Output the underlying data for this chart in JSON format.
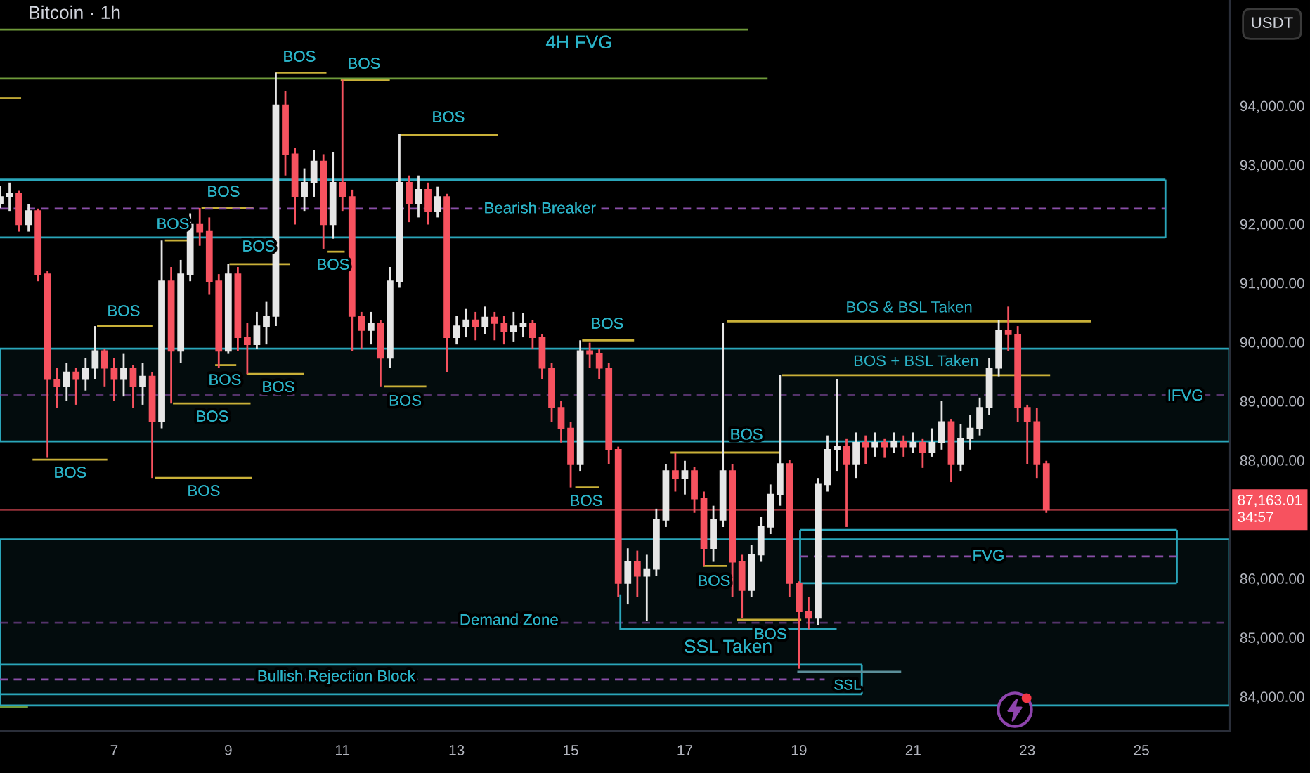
{
  "chart_data": {
    "type": "candlestick",
    "title": "Bitcoin · 1h",
    "ylabel": "USDT",
    "x": [
      5.0,
      5.167,
      5.333,
      5.5,
      5.667,
      5.833,
      6.0,
      6.167,
      6.333,
      6.5,
      6.667,
      6.833,
      7.0,
      7.167,
      7.333,
      7.5,
      7.667,
      7.833,
      8.0,
      8.167,
      8.333,
      8.5,
      8.667,
      8.833,
      9.0,
      9.167,
      9.333,
      9.5,
      9.667,
      9.833,
      10.0,
      10.167,
      10.333,
      10.5,
      10.667,
      10.833,
      11.0,
      11.167,
      11.333,
      11.5,
      11.667,
      11.833,
      12.0,
      12.167,
      12.333,
      12.5,
      12.667,
      12.833,
      13.0,
      13.167,
      13.333,
      13.5,
      13.667,
      13.833,
      14.0,
      14.167,
      14.333,
      14.5,
      14.667,
      14.833,
      15.0,
      15.167,
      15.333,
      15.5,
      15.667,
      15.833,
      16.0,
      16.167,
      16.333,
      16.5,
      16.667,
      16.833,
      17.0,
      17.167,
      17.333,
      17.5,
      17.667,
      17.833,
      18.0,
      18.167,
      18.333,
      18.5,
      18.667,
      18.833,
      19.0,
      19.167,
      19.333,
      19.5,
      19.667,
      19.833,
      20.0,
      20.167,
      20.333,
      20.5,
      20.667,
      20.833,
      21.0,
      21.167,
      21.333,
      21.5,
      21.667,
      21.833,
      22.0,
      22.167,
      22.333,
      22.5,
      22.667,
      22.833,
      23.0,
      23.167,
      23.333
    ],
    "ohlc": [
      [
        92340,
        92650,
        92270,
        92460
      ],
      [
        92460,
        92700,
        92220,
        92510
      ],
      [
        92510,
        92560,
        91870,
        91990
      ],
      [
        91990,
        92340,
        91870,
        92220
      ],
      [
        92220,
        92260,
        91030,
        91150
      ],
      [
        91150,
        91200,
        88040,
        89370
      ],
      [
        89370,
        89560,
        88890,
        89250
      ],
      [
        89250,
        89650,
        89010,
        89490
      ],
      [
        89490,
        89560,
        88940,
        89370
      ],
      [
        89370,
        89730,
        89180,
        89560
      ],
      [
        89560,
        90270,
        89370,
        89850
      ],
      [
        89850,
        89890,
        89250,
        89560
      ],
      [
        89560,
        89730,
        89010,
        89370
      ],
      [
        89370,
        89800,
        89080,
        89560
      ],
      [
        89560,
        89610,
        88890,
        89250
      ],
      [
        89250,
        89650,
        88940,
        89420
      ],
      [
        89420,
        89490,
        87700,
        88650
      ],
      [
        88650,
        91720,
        88540,
        91030
      ],
      [
        91030,
        91270,
        88960,
        89850
      ],
      [
        89850,
        91390,
        89650,
        91150
      ],
      [
        91150,
        92180,
        91030,
        91990
      ],
      [
        91990,
        92270,
        91630,
        91870
      ],
      [
        91870,
        92110,
        90800,
        91030
      ],
      [
        91030,
        91150,
        89560,
        89850
      ],
      [
        89850,
        91320,
        89800,
        91150
      ],
      [
        91150,
        91270,
        89850,
        90080
      ],
      [
        90080,
        90320,
        89460,
        89960
      ],
      [
        89960,
        90510,
        89890,
        90270
      ],
      [
        90270,
        90680,
        89960,
        90440
      ],
      [
        90440,
        94560,
        90270,
        94010
      ],
      [
        94010,
        94250,
        92820,
        93180
      ],
      [
        93180,
        93290,
        91990,
        92460
      ],
      [
        92460,
        92940,
        92220,
        92700
      ],
      [
        92700,
        93250,
        92460,
        93060
      ],
      [
        93060,
        93180,
        91580,
        91990
      ],
      [
        91990,
        93220,
        91750,
        92700
      ],
      [
        92700,
        94440,
        92220,
        92460
      ],
      [
        92460,
        92580,
        89850,
        90440
      ],
      [
        90440,
        90510,
        89890,
        90200
      ],
      [
        90200,
        90510,
        89960,
        90320
      ],
      [
        90320,
        90370,
        89250,
        89730
      ],
      [
        89730,
        91270,
        89560,
        91030
      ],
      [
        91030,
        93530,
        90920,
        92700
      ],
      [
        92700,
        92820,
        92030,
        92340
      ],
      [
        92340,
        92820,
        92110,
        92580
      ],
      [
        92580,
        92700,
        91990,
        92220
      ],
      [
        92220,
        92630,
        92110,
        92460
      ],
      [
        92460,
        92510,
        89490,
        90080
      ],
      [
        90080,
        90440,
        89960,
        90270
      ],
      [
        90270,
        90560,
        90080,
        90370
      ],
      [
        90370,
        90510,
        90030,
        90270
      ],
      [
        90270,
        90600,
        90130,
        90420
      ],
      [
        90420,
        90510,
        90030,
        90320
      ],
      [
        90320,
        90440,
        89960,
        90180
      ],
      [
        90180,
        90510,
        90010,
        90270
      ],
      [
        90270,
        90490,
        90080,
        90320
      ],
      [
        90320,
        90370,
        89890,
        90080
      ],
      [
        90080,
        90130,
        89370,
        89560
      ],
      [
        89560,
        89650,
        88650,
        88890
      ],
      [
        88890,
        89010,
        88300,
        88540
      ],
      [
        88540,
        88650,
        87540,
        87940
      ],
      [
        87940,
        90030,
        87820,
        89850
      ],
      [
        89850,
        89990,
        89560,
        89800
      ],
      [
        89800,
        89890,
        89370,
        89560
      ],
      [
        89560,
        89650,
        87940,
        88180
      ],
      [
        88180,
        88230,
        85680,
        85920
      ],
      [
        85920,
        86510,
        85560,
        86280
      ],
      [
        86280,
        86470,
        85680,
        86040
      ],
      [
        86040,
        86400,
        85280,
        86160
      ],
      [
        86160,
        87180,
        86040,
        86990
      ],
      [
        86990,
        87940,
        86870,
        87820
      ],
      [
        87820,
        88130,
        87470,
        87700
      ],
      [
        87700,
        87990,
        87420,
        87820
      ],
      [
        87820,
        87890,
        87110,
        87350
      ],
      [
        87350,
        87470,
        86210,
        86510
      ],
      [
        86510,
        87230,
        86280,
        86990
      ],
      [
        86990,
        90320,
        86870,
        87820
      ],
      [
        87820,
        87940,
        85680,
        86280
      ],
      [
        86280,
        86400,
        85330,
        85800
      ],
      [
        85800,
        86560,
        85680,
        86400
      ],
      [
        86400,
        87040,
        86280,
        86870
      ],
      [
        86870,
        87590,
        86750,
        87420
      ],
      [
        87420,
        89440,
        87230,
        87940
      ],
      [
        87940,
        88000,
        85680,
        85920
      ],
      [
        85920,
        85950,
        84470,
        85440
      ],
      [
        85440,
        85680,
        85140,
        85330
      ],
      [
        85330,
        87700,
        85210,
        87590
      ],
      [
        87590,
        88420,
        87470,
        88180
      ],
      [
        88180,
        89370,
        87820,
        88230
      ],
      [
        88230,
        88370,
        86870,
        87940
      ],
      [
        87940,
        88470,
        87700,
        88300
      ],
      [
        88300,
        88420,
        87940,
        88230
      ],
      [
        88230,
        88470,
        88060,
        88300
      ],
      [
        88300,
        88370,
        88040,
        88230
      ],
      [
        88230,
        88470,
        88130,
        88320
      ],
      [
        88320,
        88420,
        88060,
        88230
      ],
      [
        88230,
        88470,
        88130,
        88300
      ],
      [
        88300,
        88370,
        87870,
        88130
      ],
      [
        88130,
        88540,
        88060,
        88300
      ],
      [
        88300,
        89010,
        88180,
        88650
      ],
      [
        88650,
        88700,
        87630,
        87940
      ],
      [
        87940,
        88610,
        87820,
        88370
      ],
      [
        88370,
        88770,
        88180,
        88540
      ],
      [
        88540,
        89060,
        88420,
        88890
      ],
      [
        88890,
        89730,
        88770,
        89560
      ],
      [
        89560,
        90370,
        89420,
        90200
      ],
      [
        90200,
        90600,
        89850,
        90130
      ],
      [
        90130,
        90270,
        88650,
        88890
      ],
      [
        88890,
        88940,
        87940,
        88650
      ],
      [
        88650,
        88890,
        87700,
        87940
      ],
      [
        87940,
        87990,
        87110,
        87163.01
      ]
    ],
    "colors": [
      "#e6e6e6",
      "#e6e6e6",
      "#f7525f",
      "#e6e6e6",
      "#f7525f",
      "#f7525f",
      "#f7525f",
      "#e6e6e6",
      "#f7525f",
      "#e6e6e6",
      "#e6e6e6",
      "#f7525f",
      "#f7525f",
      "#e6e6e6",
      "#f7525f",
      "#e6e6e6",
      "#f7525f",
      "#e6e6e6",
      "#f7525f",
      "#e6e6e6",
      "#e6e6e6",
      "#f7525f",
      "#f7525f",
      "#f7525f",
      "#e6e6e6",
      "#f7525f",
      "#f7525f",
      "#e6e6e6",
      "#e6e6e6",
      "#e6e6e6",
      "#f7525f",
      "#f7525f",
      "#e6e6e6",
      "#e6e6e6",
      "#f7525f",
      "#e6e6e6",
      "#f7525f",
      "#f7525f",
      "#f7525f",
      "#e6e6e6",
      "#f7525f",
      "#e6e6e6",
      "#e6e6e6",
      "#f7525f",
      "#e6e6e6",
      "#f7525f",
      "#e6e6e6",
      "#f7525f",
      "#e6e6e6",
      "#e6e6e6",
      "#f7525f",
      "#e6e6e6",
      "#f7525f",
      "#f7525f",
      "#e6e6e6",
      "#e6e6e6",
      "#f7525f",
      "#f7525f",
      "#f7525f",
      "#f7525f",
      "#f7525f",
      "#e6e6e6",
      "#f7525f",
      "#f7525f",
      "#f7525f",
      "#f7525f",
      "#e6e6e6",
      "#f7525f",
      "#e6e6e6",
      "#e6e6e6",
      "#e6e6e6",
      "#f7525f",
      "#e6e6e6",
      "#f7525f",
      "#f7525f",
      "#e6e6e6",
      "#e6e6e6",
      "#f7525f",
      "#f7525f",
      "#e6e6e6",
      "#e6e6e6",
      "#e6e6e6",
      "#e6e6e6",
      "#f7525f",
      "#f7525f",
      "#f7525f",
      "#e6e6e6",
      "#e6e6e6",
      "#e6e6e6",
      "#f7525f",
      "#e6e6e6",
      "#f7525f",
      "#e6e6e6",
      "#f7525f",
      "#e6e6e6",
      "#f7525f",
      "#e6e6e6",
      "#f7525f",
      "#e6e6e6",
      "#e6e6e6",
      "#f7525f",
      "#e6e6e6",
      "#e6e6e6",
      "#e6e6e6",
      "#e6e6e6",
      "#e6e6e6",
      "#f7525f",
      "#f7525f",
      "#f7525f",
      "#f7525f",
      "#f7525f"
    ],
    "xlim": [
      5.0,
      26.55
    ],
    "ylim": [
      83420,
      95790
    ],
    "xticks": [
      7,
      9,
      11,
      13,
      15,
      17,
      19,
      21,
      23,
      25
    ],
    "yticks": [
      {
        "value": 84000,
        "label": "84,000.00"
      },
      {
        "value": 85000,
        "label": "85,000.00"
      },
      {
        "value": 86000,
        "label": "86,000.00"
      },
      {
        "value": 88000,
        "label": "88,000.00"
      },
      {
        "value": 89000,
        "label": "89,000.00"
      },
      {
        "value": 90000,
        "label": "90,000.00"
      },
      {
        "value": 91000,
        "label": "91,000.00"
      },
      {
        "value": 92000,
        "label": "92,000.00"
      },
      {
        "value": 93000,
        "label": "93,000.00"
      },
      {
        "value": 94000,
        "label": "94,000.00"
      }
    ],
    "series": [
      {
        "type": "line",
        "color": "#c9b038",
        "x": [
          5.0,
          5.37
        ],
        "values": [
          94130,
          94130
        ]
      },
      {
        "type": "line",
        "color": "#c9b038",
        "x": [
          5.57,
          6.88
        ],
        "values": [
          88010,
          88010
        ]
      },
      {
        "type": "line",
        "color": "#c9b038",
        "x": [
          6.7,
          7.67
        ],
        "values": [
          90270,
          90270
        ]
      },
      {
        "type": "line",
        "color": "#c9b038",
        "x": [
          7.71,
          9.41
        ],
        "values": [
          87700,
          87700
        ]
      },
      {
        "type": "line",
        "color": "#c9b038",
        "x": [
          7.89,
          8.28
        ],
        "values": [
          91720,
          91720
        ]
      },
      {
        "type": "line",
        "color": "#c9b038",
        "x": [
          8.03,
          9.39
        ],
        "values": [
          88960,
          88960
        ]
      },
      {
        "type": "line",
        "color": "#c9b038",
        "x": [
          8.53,
          9.44
        ],
        "values": [
          92270,
          92270
        ]
      },
      {
        "type": "line",
        "color": "#c9b038",
        "x": [
          8.77,
          9.14
        ],
        "values": [
          89610,
          89610
        ]
      },
      {
        "type": "line",
        "color": "#c9b038",
        "x": [
          9.02,
          10.08
        ],
        "values": [
          91320,
          91320
        ]
      },
      {
        "type": "line",
        "color": "#c9b038",
        "x": [
          9.32,
          10.33
        ],
        "values": [
          89460,
          89460
        ]
      },
      {
        "type": "line",
        "color": "#c9b038",
        "x": [
          9.83,
          10.72
        ],
        "values": [
          94560,
          94560
        ]
      },
      {
        "type": "line",
        "color": "#c9b038",
        "x": [
          10.97,
          11.83
        ],
        "values": [
          94440,
          94440
        ]
      },
      {
        "type": "line",
        "color": "#c9b038",
        "x": [
          10.74,
          11.04
        ],
        "values": [
          91530,
          91530
        ]
      },
      {
        "type": "line",
        "color": "#c9b038",
        "x": [
          11.73,
          12.47
        ],
        "values": [
          89250,
          89250
        ]
      },
      {
        "type": "line",
        "color": "#c9b038",
        "x": [
          12.0,
          13.72
        ],
        "values": [
          93510,
          93510
        ]
      },
      {
        "type": "line",
        "color": "#c9b038",
        "x": [
          15.2,
          16.11
        ],
        "values": [
          90030,
          90030
        ]
      },
      {
        "type": "line",
        "color": "#c9b038",
        "x": [
          15.08,
          15.5
        ],
        "values": [
          87540,
          87540
        ]
      },
      {
        "type": "line",
        "color": "#c9b038",
        "x": [
          16.75,
          18.67
        ],
        "values": [
          88130,
          88130
        ]
      },
      {
        "type": "line",
        "color": "#c9b038",
        "x": [
          17.32,
          17.74
        ],
        "values": [
          86210,
          86210
        ]
      },
      {
        "type": "line",
        "color": "#c9b038",
        "x": [
          17.91,
          19.04
        ],
        "values": [
          85300,
          85300
        ]
      },
      {
        "type": "line",
        "color": "#c9b038",
        "name": "BOS & BSL Taken",
        "x": [
          17.74,
          24.12
        ],
        "values": [
          90350,
          90350
        ]
      },
      {
        "type": "line",
        "color": "#c9b038",
        "name": "BOS + BSL Taken",
        "x": [
          18.7,
          23.4
        ],
        "values": [
          89440,
          89440
        ]
      },
      {
        "type": "line",
        "color": "#6f9a3a",
        "x": [
          5.0,
          18.11
        ],
        "values": [
          95290,
          95290
        ]
      },
      {
        "type": "line",
        "color": "#6f9a3a",
        "x": [
          5.0,
          18.45
        ],
        "values": [
          94460,
          94460
        ]
      },
      {
        "type": "line",
        "color": "#6f9a3a",
        "x": [
          5.0,
          5.49
        ],
        "values": [
          83830,
          83830
        ]
      },
      {
        "type": "line",
        "color": "#2aa6ba",
        "x": [
          5.0,
          25.42
        ],
        "values": [
          92750,
          92750
        ]
      },
      {
        "type": "line",
        "color": "#2aa6ba",
        "x": [
          5.0,
          25.42
        ],
        "values": [
          91770,
          91770
        ]
      },
      {
        "type": "line",
        "color": "#2aa6ba",
        "x": [
          25.42,
          25.42
        ],
        "values": [
          92750,
          91770
        ]
      },
      {
        "type": "line",
        "color": "#8a4fa8",
        "line_style": "dashed",
        "x": [
          5.0,
          25.42
        ],
        "values": [
          92260,
          92260
        ]
      },
      {
        "type": "line",
        "color": "#2aa6ba",
        "x": [
          19.02,
          25.62
        ],
        "values": [
          86820,
          86820
        ]
      },
      {
        "type": "line",
        "color": "#2aa6ba",
        "x": [
          19.02,
          25.62
        ],
        "values": [
          85920,
          85920
        ]
      },
      {
        "type": "line",
        "color": "#2aa6ba",
        "x": [
          19.02,
          19.02
        ],
        "values": [
          86820,
          85920
        ]
      },
      {
        "type": "line",
        "color": "#2aa6ba",
        "x": [
          25.62,
          25.62
        ],
        "values": [
          86820,
          85920
        ]
      },
      {
        "type": "line",
        "color": "#8a4fa8",
        "line_style": "dashed",
        "x": [
          19.02,
          25.62
        ],
        "values": [
          86370,
          86370
        ]
      },
      {
        "type": "line",
        "color": "#2aa6ba",
        "x": [
          5.0,
          20.1
        ],
        "values": [
          84540,
          84540
        ]
      },
      {
        "type": "line",
        "color": "#2aa6ba",
        "x": [
          5.0,
          20.1
        ],
        "values": [
          84040,
          84040
        ]
      },
      {
        "type": "line",
        "color": "#2aa6ba",
        "x": [
          20.1,
          20.1
        ],
        "values": [
          84540,
          84040
        ]
      },
      {
        "type": "line",
        "color": "#8a4fa8",
        "line_style": "dashed",
        "x": [
          5.0,
          19.45
        ],
        "values": [
          84290,
          84290
        ]
      },
      {
        "type": "line",
        "color": "#2aa6ba",
        "x": [
          15.87,
          15.87,
          19.66
        ],
        "values": [
          85730,
          85140,
          85140
        ]
      },
      {
        "type": "line",
        "color": "#5b8f99",
        "x": [
          18.97,
          20.79
        ],
        "values": [
          84420,
          84420
        ]
      }
    ],
    "bands": [
      {
        "axis": "y",
        "from": 88320,
        "to": 89890,
        "color": "#2aa6ba"
      },
      {
        "axis": "y",
        "from": 83850,
        "to": 86660,
        "color": "#2aa6ba"
      }
    ],
    "ref_lines": [
      {
        "axis": "y",
        "value": 89100,
        "color": "#8a4fa8",
        "line_style": "dashed"
      },
      {
        "axis": "y",
        "value": 85250,
        "color": "#8a4fa8",
        "line_style": "dashed"
      },
      {
        "axis": "y",
        "value": 87163.01,
        "label": "87,163.01\n34:57",
        "color": "#f7525f"
      }
    ],
    "annotations": [
      {
        "text": "BOS",
        "x": 12.1,
        "y": 88990
      },
      {
        "text": "BOS",
        "x": 18.08,
        "y": 88420
      },
      {
        "text": "BOS",
        "x": 18.5,
        "y": 85040
      },
      {
        "text": "Bearish Breaker",
        "x": 14.46,
        "y": 92250
      },
      {
        "text": "IFVG",
        "x": 25.77,
        "y": 89080
      },
      {
        "text": "FVG",
        "x": 22.32,
        "y": 86370
      },
      {
        "text": "Demand Zone",
        "x": 13.92,
        "y": 85280
      },
      {
        "text": "Bullish Rejection Block",
        "x": 10.89,
        "y": 84330
      },
      "4H FVG",
      "SSL Taken",
      "SSL",
      "BOS",
      "BOS",
      "BOS",
      "BOS",
      "BOS",
      "BOS",
      "BOS",
      "BOS",
      "BOS",
      "BOS",
      "BOS",
      "BOS",
      "BOS",
      "BOS",
      "BOS",
      "BOS"
    ]
  }
}
